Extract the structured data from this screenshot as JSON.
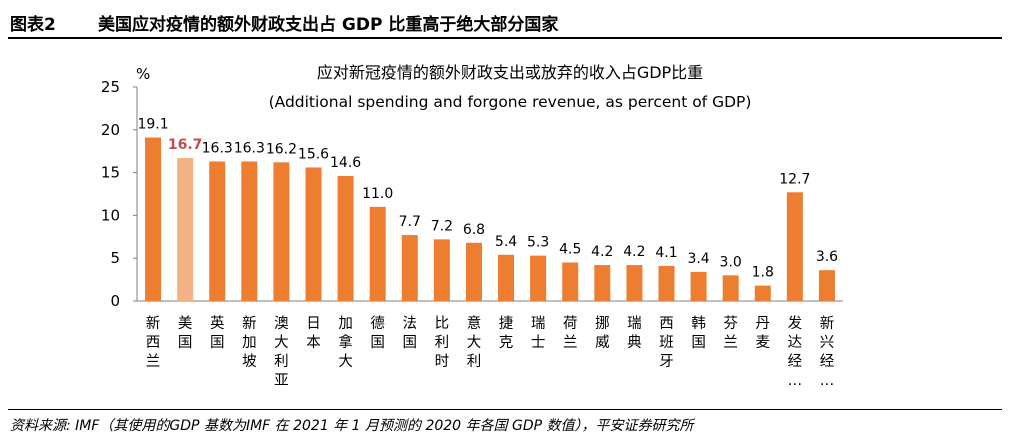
{
  "header": {
    "figure_number": "图表2",
    "title": "美国应对疫情的额外财政支出占 GDP 比重高于绝大部分国家"
  },
  "source": "资料来源: IMF（其使用的GDP 基数为IMF 在 2021 年 1 月预测的 2020 年各国 GDP 数值），平安证券研究所",
  "chart_data": {
    "type": "bar",
    "title": "应对新冠疫情的额外财政支出或放弃的收入占GDP比重",
    "subtitle": "(Additional spending and forgone revenue, as percent of GDP)",
    "ylabel": "%",
    "ylim": [
      0,
      25
    ],
    "yticks": [
      "0",
      "5",
      "10",
      "15",
      "20",
      "25"
    ],
    "categories": [
      "新西兰",
      "美国",
      "英国",
      "新加坡",
      "澳大利亚",
      "日本",
      "加拿大",
      "德国",
      "法国",
      "比利时",
      "意大利",
      "捷克",
      "瑞士",
      "荷兰",
      "挪威",
      "瑞典",
      "西班牙",
      "韩国",
      "芬兰",
      "丹麦",
      "发达经…",
      "新兴经…"
    ],
    "category_lines": [
      [
        "新",
        "西",
        "兰"
      ],
      [
        "美",
        "国"
      ],
      [
        "英",
        "国"
      ],
      [
        "新",
        "加",
        "坡"
      ],
      [
        "澳",
        "大",
        "利",
        "亚"
      ],
      [
        "日",
        "本"
      ],
      [
        "加",
        "拿",
        "大"
      ],
      [
        "德",
        "国"
      ],
      [
        "法",
        "国"
      ],
      [
        "比",
        "利",
        "时"
      ],
      [
        "意",
        "大",
        "利"
      ],
      [
        "捷",
        "克"
      ],
      [
        "瑞",
        "士"
      ],
      [
        "荷",
        "兰"
      ],
      [
        "挪",
        "威"
      ],
      [
        "瑞",
        "典"
      ],
      [
        "西",
        "班",
        "牙"
      ],
      [
        "韩",
        "国"
      ],
      [
        "芬",
        "兰"
      ],
      [
        "丹",
        "麦"
      ],
      [
        "发",
        "达",
        "经",
        "…"
      ],
      [
        "新",
        "兴",
        "经",
        "…"
      ]
    ],
    "values": [
      19.1,
      16.7,
      16.3,
      16.3,
      16.2,
      15.6,
      14.6,
      11.0,
      7.7,
      7.2,
      6.8,
      5.4,
      5.3,
      4.5,
      4.2,
      4.2,
      4.1,
      3.4,
      3.0,
      1.8,
      12.7,
      3.6
    ],
    "value_labels": [
      "19.1",
      "16.7",
      "16.3",
      "16.3",
      "16.2",
      "15.6",
      "14.6",
      "11.0",
      "7.7",
      "7.2",
      "6.8",
      "5.4",
      "5.3",
      "4.5",
      "4.2",
      "4.2",
      "4.1",
      "3.4",
      "3.0",
      "1.8",
      "12.7",
      "3.6"
    ],
    "highlight_index": 1,
    "colors": {
      "bar": "#ED7D31",
      "highlight_bar": "#F4B183",
      "highlight_label": "#C0504D",
      "axis": "#808080"
    }
  }
}
